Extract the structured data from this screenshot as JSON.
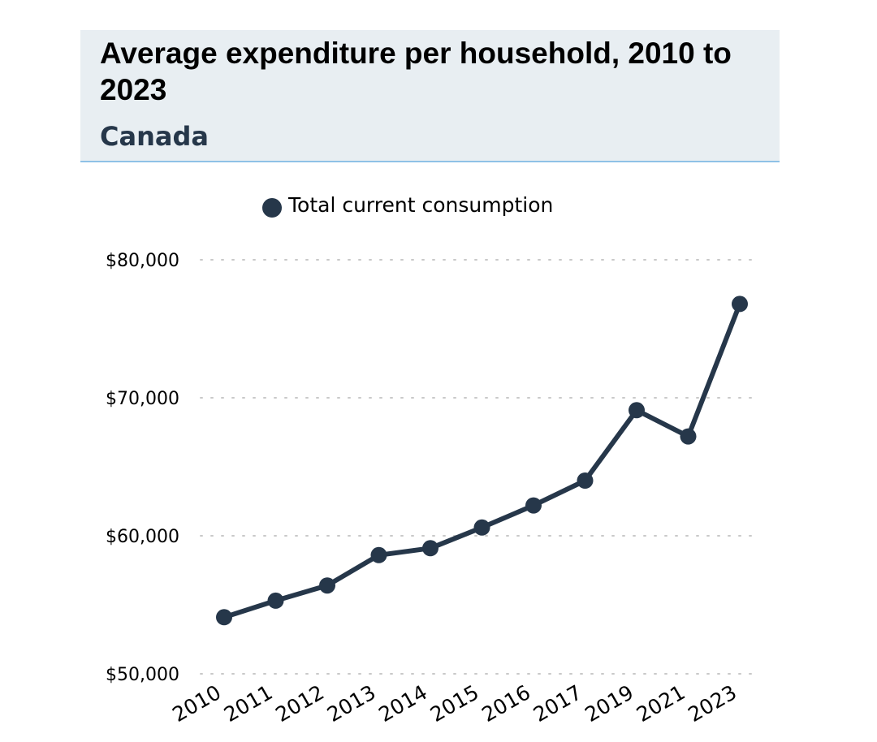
{
  "header": {
    "title": "Average expenditure per household, 2010 to 2023",
    "subtitle": "Canada"
  },
  "chart_data": {
    "type": "line",
    "title": "Average expenditure per household, 2010 to 2023",
    "subtitle": "Canada",
    "xlabel": "",
    "ylabel": "",
    "categories": [
      "2010",
      "2011",
      "2012",
      "2013",
      "2014",
      "2015",
      "2016",
      "2017",
      "2019",
      "2021",
      "2023"
    ],
    "series": [
      {
        "name": "Total current consumption",
        "color": "#26374a",
        "values": [
          54100,
          55300,
          56400,
          58600,
          59100,
          60600,
          62200,
          64000,
          69100,
          67200,
          76800
        ]
      }
    ],
    "ylim": [
      50000,
      80000
    ],
    "yticks": [
      50000,
      60000,
      70000,
      80000
    ],
    "ytick_labels": [
      "$50,000",
      "$60,000",
      "$70,000",
      "$80,000"
    ],
    "grid": "horizontal-dotted",
    "legend_position": "top-center"
  }
}
